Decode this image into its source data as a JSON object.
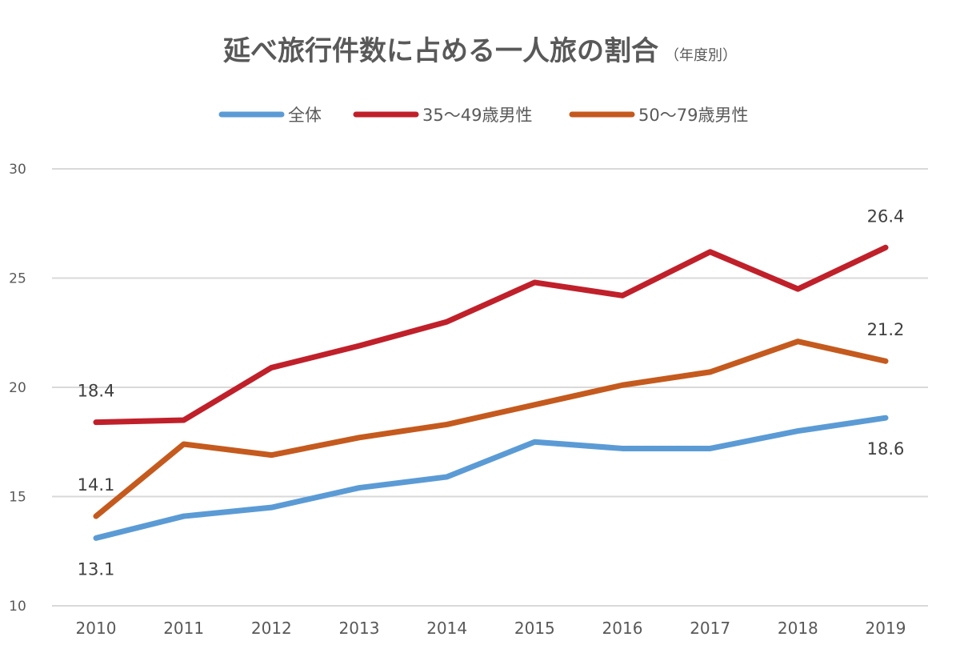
{
  "chart_data": {
    "type": "line",
    "title": "延べ旅行件数に占める一人旅の割合",
    "subtitle": "（年度別）",
    "xlabel": "",
    "ylabel": "",
    "categories": [
      "2010",
      "2011",
      "2012",
      "2013",
      "2014",
      "2015",
      "2016",
      "2017",
      "2018",
      "2019"
    ],
    "ylim": [
      10,
      30
    ],
    "yticks": [
      10,
      15,
      20,
      25,
      30
    ],
    "grid": true,
    "legend_position": "top",
    "series": [
      {
        "name": "全体",
        "color": "#5b9bd5",
        "values": [
          13.1,
          14.1,
          14.5,
          15.4,
          15.9,
          17.5,
          17.2,
          17.2,
          18.0,
          18.6
        ],
        "labels": [
          {
            "index": 0,
            "text": "13.1",
            "pos": "below"
          },
          {
            "index": 9,
            "text": "18.6",
            "pos": "below"
          }
        ]
      },
      {
        "name": "35～49歳男性",
        "color": "#c0202a",
        "values": [
          18.4,
          18.5,
          20.9,
          21.9,
          23.0,
          24.8,
          24.2,
          26.2,
          24.5,
          26.4
        ],
        "labels": [
          {
            "index": 0,
            "text": "18.4",
            "pos": "above"
          },
          {
            "index": 9,
            "text": "26.4",
            "pos": "above"
          }
        ]
      },
      {
        "name": "50～79歳男性",
        "color": "#c55a1e",
        "values": [
          14.1,
          17.4,
          16.9,
          17.7,
          18.3,
          19.2,
          20.1,
          20.7,
          22.1,
          21.2
        ],
        "labels": [
          {
            "index": 0,
            "text": "14.1",
            "pos": "above"
          },
          {
            "index": 9,
            "text": "21.2",
            "pos": "above"
          }
        ]
      }
    ]
  }
}
